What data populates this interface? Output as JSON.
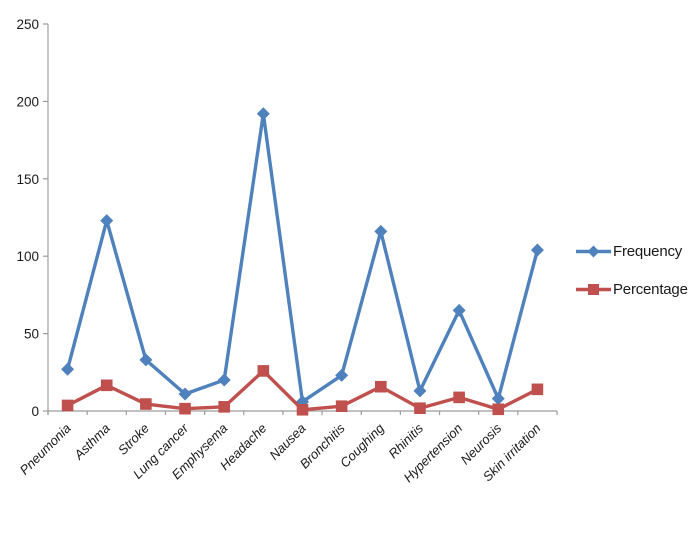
{
  "chart_data": {
    "type": "line",
    "categories": [
      "Pneumonia",
      "Asthma",
      "Stroke",
      "Lung cancer",
      "Emphysema",
      "Headache",
      "Nausea",
      "Bronchitis",
      "Coughing",
      "Rhinitis",
      "Hypertension",
      "Neurosis",
      "Skin irritation"
    ],
    "series": [
      {
        "name": "Frequency",
        "color": "#4F81BD",
        "marker": "diamond",
        "values": [
          27,
          123,
          33,
          11,
          20,
          192,
          6,
          23,
          116,
          13,
          65,
          8,
          104
        ]
      },
      {
        "name": "Percentage",
        "color": "#C0504D",
        "marker": "square",
        "values": [
          3.6,
          16.6,
          4.5,
          1.5,
          2.7,
          25.9,
          0.8,
          3.1,
          15.7,
          1.8,
          8.8,
          1.1,
          14.0
        ]
      }
    ],
    "title": "",
    "xlabel": "",
    "ylabel": "",
    "ylim": [
      0,
      250
    ],
    "yticks": [
      0,
      50,
      100,
      150,
      200,
      250
    ],
    "grid": false,
    "legend_position": "right",
    "axis_color": "#9c9c9c",
    "text_color": "#1a1a1a"
  }
}
